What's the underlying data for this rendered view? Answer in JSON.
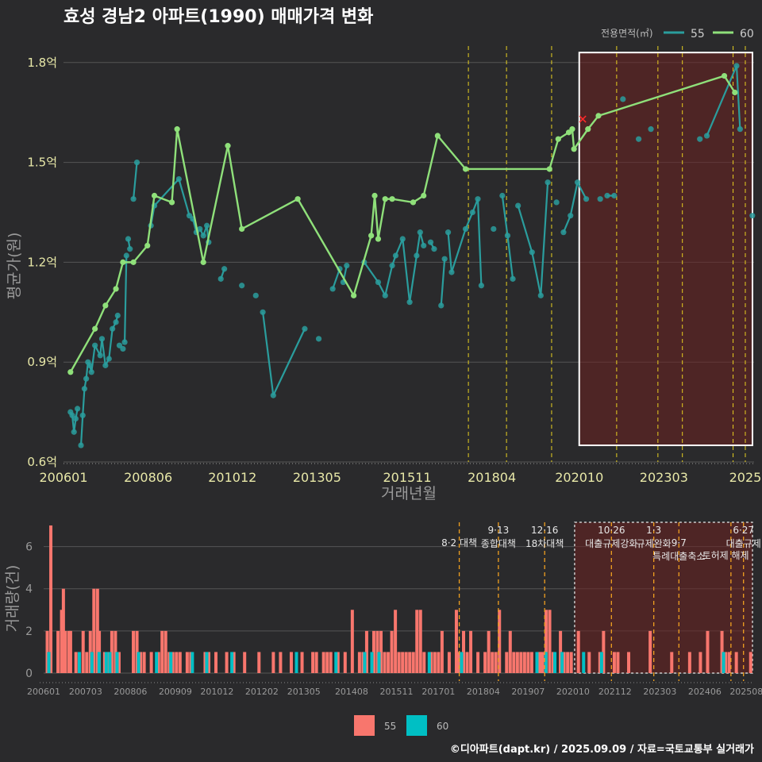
{
  "title": "효성 경남2 아파트(1990) 매매가격 변화",
  "credit": "©디아파트(dapt.kr) / 2025.09.09 / 자료=국토교통부 실거래가",
  "legend_top": {
    "title": "전용면적(㎡)",
    "items": [
      "55",
      "60"
    ]
  },
  "legend_bottom": {
    "items": [
      "55",
      "60"
    ]
  },
  "colors": {
    "s55": "#2a9d9d",
    "s60": "#8fe07a",
    "bar55": "#f8766d",
    "bar60": "#00bfc4",
    "vline": "#e8d020",
    "vline_b": "#f0a020",
    "shade": "#6b2020"
  },
  "chart_data": [
    {
      "type": "line",
      "title": "효성 경남2 아파트(1990) 매매가격 변화",
      "xlabel": "거래년월",
      "ylabel": "평균가(원)",
      "ylim": [
        0.6,
        1.84
      ],
      "xlim": [
        2006.0,
        2025.75
      ],
      "yticks": [
        {
          "v": 0.6,
          "label": "0.6억"
        },
        {
          "v": 0.9,
          "label": "0.9억"
        },
        {
          "v": 1.2,
          "label": "1.2억"
        },
        {
          "v": 1.5,
          "label": "1.5억"
        },
        {
          "v": 1.8,
          "label": "1.8억"
        }
      ],
      "xticks": [
        {
          "v": 2006.0,
          "label": "200601"
        },
        {
          "v": 2008.42,
          "label": "200806"
        },
        {
          "v": 2010.83,
          "label": "201012"
        },
        {
          "v": 2013.25,
          "label": "201305"
        },
        {
          "v": 2015.83,
          "label": "201511"
        },
        {
          "v": 2018.25,
          "label": "201804"
        },
        {
          "v": 2020.75,
          "label": "202010"
        },
        {
          "v": 2023.17,
          "label": "202303"
        },
        {
          "v": 2025.5,
          "label": "2025"
        }
      ],
      "policy_lines": [
        2017.58,
        2018.67,
        2019.96,
        2021.82,
        2023.0,
        2023.7,
        2025.15,
        2025.5
      ],
      "highlight_range": [
        2020.75,
        2025.75
      ],
      "series": [
        {
          "name": "55",
          "x": [
            2006.2,
            2006.25,
            2006.3,
            2006.35,
            2006.4,
            2006.5,
            2006.55,
            2006.6,
            2006.65,
            2006.7,
            2006.75,
            2006.8,
            2006.9,
            2007.05,
            2007.1,
            2007.2,
            2007.3,
            2007.4,
            2007.5,
            2007.55,
            2007.6,
            2007.7,
            2007.75,
            2007.8,
            2007.85,
            2007.9,
            2008.0,
            2008.1,
            2008.5,
            2008.6,
            2009.3,
            2009.6,
            2009.7,
            2009.8,
            2009.9,
            2010.0,
            2010.1,
            2010.15,
            2010.5,
            2010.6,
            2011.1,
            2011.5,
            2011.7,
            2012.0,
            2012.9,
            2013.3,
            2013.7,
            2013.9,
            2014.0,
            2014.1,
            2014.6,
            2015.0,
            2015.2,
            2015.4,
            2015.5,
            2015.7,
            2015.9,
            2016.1,
            2016.2,
            2016.3,
            2016.5,
            2016.6,
            2016.8,
            2016.9,
            2017.0,
            2017.1,
            2017.5,
            2017.7,
            2017.85,
            2017.95,
            2018.3,
            2018.55,
            2018.7,
            2018.85,
            2019.0,
            2019.4,
            2019.65,
            2019.85,
            2020.1,
            2020.3,
            2020.5,
            2020.7,
            2020.95,
            2021.35,
            2021.55,
            2021.75,
            2022.0,
            2022.45,
            2022.8,
            2024.2,
            2024.4,
            2025.25,
            2025.35,
            2025.7
          ],
          "y": [
            0.75,
            0.74,
            0.69,
            0.73,
            0.76,
            0.65,
            0.74,
            0.82,
            0.85,
            0.9,
            0.89,
            0.87,
            0.95,
            0.92,
            0.97,
            0.89,
            0.91,
            1.0,
            1.02,
            1.04,
            0.95,
            0.94,
            0.96,
            1.22,
            1.27,
            1.24,
            1.39,
            1.5,
            1.31,
            1.37,
            1.45,
            1.34,
            1.33,
            1.29,
            1.3,
            1.28,
            1.31,
            1.26,
            1.15,
            1.18,
            1.13,
            1.1,
            1.05,
            0.8,
            1.0,
            0.97,
            1.12,
            1.18,
            1.14,
            1.19,
            1.2,
            1.14,
            1.1,
            1.19,
            1.22,
            1.27,
            1.08,
            1.22,
            1.29,
            1.25,
            1.26,
            1.24,
            1.07,
            1.21,
            1.29,
            1.17,
            1.3,
            1.35,
            1.39,
            1.13,
            1.3,
            1.4,
            1.28,
            1.15,
            1.37,
            1.23,
            1.1,
            1.44,
            1.38,
            1.29,
            1.34,
            1.44,
            1.39,
            1.39,
            1.4,
            1.4,
            1.69,
            1.57,
            1.6,
            1.57,
            1.58,
            1.79,
            1.6,
            1.34
          ],
          "pairs": [
            [
              0,
              1
            ],
            [
              1,
              2
            ],
            [
              2,
              3
            ],
            [
              3,
              4
            ],
            [
              5,
              6
            ],
            [
              6,
              7
            ],
            [
              7,
              8
            ],
            [
              8,
              9
            ],
            [
              9,
              10
            ],
            [
              10,
              11
            ],
            [
              11,
              12
            ],
            [
              12,
              13
            ],
            [
              13,
              14
            ],
            [
              14,
              15
            ],
            [
              15,
              16
            ],
            [
              16,
              17
            ],
            [
              17,
              18
            ],
            [
              18,
              19
            ],
            [
              22,
              23
            ],
            [
              24,
              25
            ],
            [
              26,
              27
            ],
            [
              28,
              29
            ],
            [
              29,
              30
            ],
            [
              30,
              31
            ],
            [
              32,
              33
            ],
            [
              34,
              35
            ],
            [
              35,
              36
            ],
            [
              36,
              37
            ],
            [
              38,
              39
            ],
            [
              42,
              43
            ],
            [
              43,
              44
            ],
            [
              46,
              47
            ],
            [
              48,
              49
            ],
            [
              50,
              51
            ],
            [
              51,
              52
            ],
            [
              52,
              53
            ],
            [
              53,
              54
            ],
            [
              54,
              55
            ],
            [
              55,
              56
            ],
            [
              56,
              57
            ],
            [
              57,
              58
            ],
            [
              58,
              59
            ],
            [
              60,
              61
            ],
            [
              62,
              63
            ],
            [
              64,
              65
            ],
            [
              65,
              66
            ],
            [
              66,
              67
            ],
            [
              67,
              68
            ],
            [
              68,
              69
            ],
            [
              71,
              72
            ],
            [
              72,
              73
            ],
            [
              74,
              75
            ],
            [
              75,
              76
            ],
            [
              76,
              77
            ],
            [
              79,
              80
            ],
            [
              80,
              81
            ],
            [
              81,
              82
            ],
            [
              84,
              85
            ],
            [
              90,
              91
            ],
            [
              91,
              92
            ]
          ]
        },
        {
          "name": "60",
          "x": [
            2006.2,
            2006.9,
            2007.2,
            2007.5,
            2007.7,
            2008.0,
            2008.4,
            2008.6,
            2009.1,
            2009.25,
            2010.0,
            2010.7,
            2011.1,
            2012.7,
            2014.3,
            2014.8,
            2014.9,
            2015.0,
            2015.2,
            2015.4,
            2016.0,
            2016.3,
            2016.7,
            2017.5,
            2019.9,
            2020.15,
            2020.45,
            2020.55,
            2020.6,
            2021.0,
            2021.3,
            2024.9,
            2025.2
          ],
          "y": [
            0.87,
            1.0,
            1.07,
            1.12,
            1.2,
            1.2,
            1.25,
            1.4,
            1.38,
            1.6,
            1.2,
            1.55,
            1.3,
            1.39,
            1.1,
            1.28,
            1.4,
            1.27,
            1.39,
            1.39,
            1.38,
            1.4,
            1.58,
            1.48,
            1.48,
            1.57,
            1.59,
            1.6,
            1.54,
            1.6,
            1.64,
            1.76,
            1.71
          ]
        },
        {
          "name": "cancel",
          "x": [
            2020.85
          ],
          "y": [
            1.63
          ]
        }
      ]
    },
    {
      "type": "bar",
      "ylabel": "거래량(건)",
      "ylim": [
        0,
        7
      ],
      "yticks": [
        0,
        2,
        4,
        6
      ],
      "xticks": [
        {
          "v": 2006.0,
          "label": "200601"
        },
        {
          "v": 2007.17,
          "label": "200703"
        },
        {
          "v": 2008.42,
          "label": "200806"
        },
        {
          "v": 2009.67,
          "label": "200909"
        },
        {
          "v": 2010.83,
          "label": "201012"
        },
        {
          "v": 2012.08,
          "label": "201202"
        },
        {
          "v": 2013.25,
          "label": "201305"
        },
        {
          "v": 2014.58,
          "label": "201408"
        },
        {
          "v": 2015.83,
          "label": "201511"
        },
        {
          "v": 2017.0,
          "label": "201701"
        },
        {
          "v": 2018.25,
          "label": "201804"
        },
        {
          "v": 2019.5,
          "label": "201907"
        },
        {
          "v": 2020.75,
          "label": "202010"
        },
        {
          "v": 2021.92,
          "label": "202112"
        },
        {
          "v": 2023.17,
          "label": "202303"
        },
        {
          "v": 2024.42,
          "label": "202406"
        },
        {
          "v": 2025.58,
          "label": "202508"
        }
      ],
      "annotations": [
        {
          "x": 2017.58,
          "lines": [
            "8·2 대책"
          ],
          "row": 1
        },
        {
          "x": 2018.67,
          "lines": [
            "9·13",
            "종합대책"
          ],
          "row": 0
        },
        {
          "x": 2019.96,
          "lines": [
            "12·16",
            "18차대책"
          ],
          "row": 0
        },
        {
          "x": 2021.82,
          "lines": [
            "10·26",
            "대출규제강화"
          ],
          "row": 0
        },
        {
          "x": 2023.0,
          "lines": [
            "1·3",
            "규제완화"
          ],
          "row": 0
        },
        {
          "x": 2023.7,
          "lines": [
            "9·7",
            "특례대출축소"
          ],
          "row": 1
        },
        {
          "x": 2025.0,
          "lines": [
            "토허제 해제"
          ],
          "row": 2
        },
        {
          "x": 2025.5,
          "lines": [
            "6·27",
            "대출규제"
          ],
          "row": 0
        }
      ],
      "series": [
        {
          "name": "55",
          "x": [
            2006.1,
            2006.2,
            2006.4,
            2006.5,
            2006.55,
            2006.6,
            2006.7,
            2006.75,
            2006.9,
            2007.1,
            2007.2,
            2007.3,
            2007.4,
            2007.5,
            2007.55,
            2007.7,
            2007.8,
            2007.9,
            2008.0,
            2008.1,
            2008.5,
            2008.6,
            2008.7,
            2008.8,
            2009.0,
            2009.2,
            2009.3,
            2009.4,
            2009.5,
            2009.6,
            2009.7,
            2009.8,
            2010.0,
            2010.1,
            2010.5,
            2010.6,
            2010.8,
            2011.1,
            2011.3,
            2011.6,
            2012.0,
            2012.4,
            2012.6,
            2012.9,
            2013.2,
            2013.5,
            2013.6,
            2013.8,
            2013.9,
            2014.0,
            2014.2,
            2014.4,
            2014.6,
            2014.8,
            2014.9,
            2015.0,
            2015.2,
            2015.3,
            2015.4,
            2015.5,
            2015.6,
            2015.7,
            2015.8,
            2015.9,
            2016.0,
            2016.1,
            2016.2,
            2016.3,
            2016.4,
            2016.5,
            2016.6,
            2016.8,
            2016.9,
            2017.0,
            2017.1,
            2017.3,
            2017.5,
            2017.55,
            2017.6,
            2017.7,
            2017.8,
            2017.9,
            2018.1,
            2018.3,
            2018.4,
            2018.5,
            2018.6,
            2018.7,
            2018.9,
            2019.0,
            2019.1,
            2019.2,
            2019.3,
            2019.4,
            2019.5,
            2019.6,
            2019.8,
            2019.85,
            2019.9,
            2020.0,
            2020.1,
            2020.2,
            2020.4,
            2020.5,
            2020.6,
            2020.7,
            2020.9,
            2021.2,
            2021.5,
            2021.6,
            2021.9,
            2022.0,
            2022.3,
            2022.9,
            2023.5,
            2024.0,
            2024.3,
            2024.5,
            2024.9,
            2025.0,
            2025.1,
            2025.3,
            2025.7
          ],
          "y": [
            2,
            7,
            2,
            3,
            4,
            2,
            2,
            2,
            1,
            2,
            1,
            2,
            4,
            4,
            2,
            1,
            1,
            2,
            2,
            1,
            2,
            2,
            1,
            1,
            1,
            1,
            2,
            2,
            1,
            1,
            1,
            1,
            1,
            1,
            1,
            1,
            1,
            1,
            1,
            1,
            1,
            1,
            1,
            1,
            1,
            1,
            1,
            1,
            1,
            1,
            1,
            1,
            3,
            1,
            1,
            2,
            2,
            2,
            2,
            1,
            1,
            2,
            3,
            1,
            1,
            1,
            1,
            1,
            3,
            3,
            1,
            1,
            1,
            1,
            2,
            1,
            3,
            1,
            1,
            2,
            1,
            2,
            1,
            1,
            2,
            1,
            1,
            3,
            1,
            2,
            1,
            1,
            1,
            1,
            1,
            1,
            1,
            1,
            1,
            3,
            3,
            1,
            2,
            1,
            1,
            1,
            2,
            1,
            1,
            2,
            1,
            1,
            1,
            2,
            1,
            1,
            1,
            2,
            2,
            1,
            1,
            1,
            1
          ],
          "y_unused": 0
        },
        {
          "name": "60",
          "x": [
            2006.1,
            2006.95,
            2007.3,
            2007.5,
            2007.7,
            2007.8,
            2008.0,
            2008.6,
            2009.1,
            2009.5,
            2010.1,
            2010.5,
            2011.2,
            2013.0,
            2014.1,
            2014.9,
            2015.1,
            2015.3,
            2016.7,
            2017.6,
            2019.7,
            2019.95,
            2020.2,
            2020.4,
            2021.0,
            2021.5,
            2024.9
          ],
          "y": [
            1,
            1,
            1,
            1,
            1,
            1,
            1,
            1,
            1,
            1,
            1,
            1,
            1,
            1,
            1,
            1,
            1,
            1,
            1,
            1,
            1,
            1,
            1,
            1,
            1,
            1,
            1
          ]
        }
      ]
    }
  ]
}
